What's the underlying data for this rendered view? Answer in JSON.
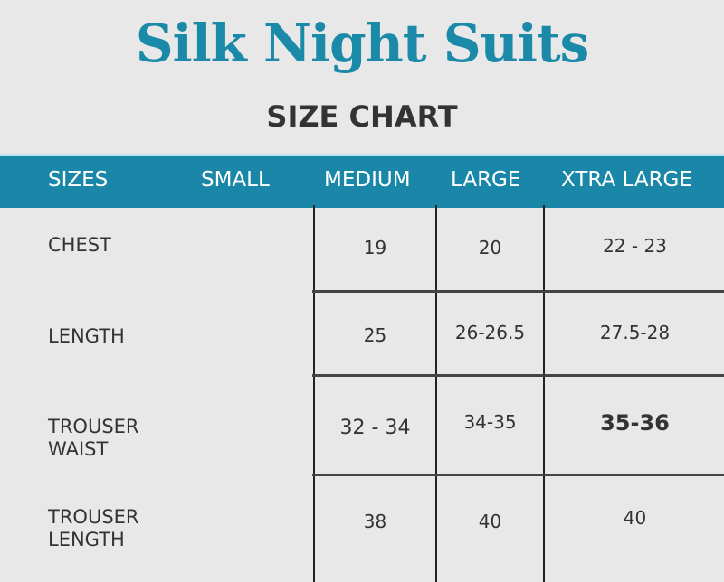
{
  "title": "Silk Night Suits",
  "subtitle": "SIZE CHART",
  "colors": {
    "accent": "#1a87a8",
    "title": "#1b8aa9",
    "background": "#e8e8e8"
  },
  "table": {
    "headers": [
      "SIZES",
      "SMALL",
      "MEDIUM",
      "LARGE",
      "XTRA LARGE"
    ],
    "rows": [
      {
        "label": "CHEST",
        "small": "",
        "medium": "19",
        "large": "20",
        "xtra_large": "22 - 23"
      },
      {
        "label": "LENGTH",
        "small": "",
        "medium": "25",
        "large": "26-26.5",
        "xtra_large": "27.5-28"
      },
      {
        "label": "TROUSER WAIST",
        "label_line1": "TROUSER",
        "label_line2": "WAIST",
        "small": "",
        "medium": "32 - 34",
        "large": "34-35",
        "xtra_large": "35-36"
      },
      {
        "label": "TROUSER LENGTH",
        "label_line1": "TROUSER",
        "label_line2": "LENGTH",
        "small": "",
        "medium": "38",
        "large": "40",
        "xtra_large": "40"
      }
    ]
  }
}
